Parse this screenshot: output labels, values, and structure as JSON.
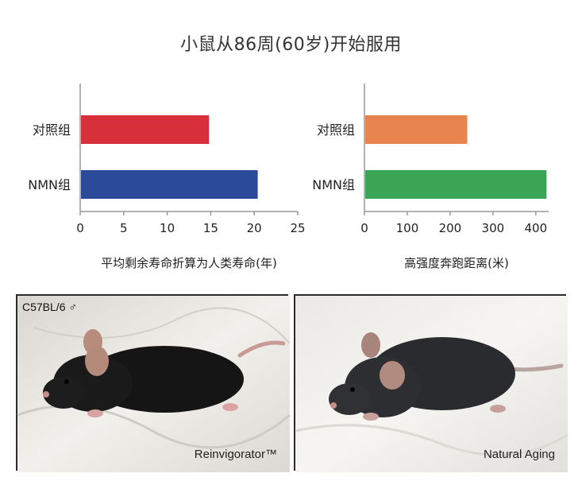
{
  "title": "小鼠从86周(60岁)开始服用",
  "chart_data": [
    {
      "type": "bar",
      "orientation": "horizontal",
      "categories": [
        "对照组",
        "NMN组"
      ],
      "values": [
        14.8,
        20.4
      ],
      "colors": [
        "#d7303b",
        "#2c4a9a"
      ],
      "xlabel": "平均剩余寿命折算为人类寿命(年)",
      "xlim": [
        0,
        25
      ],
      "xticks": [
        0,
        5,
        10,
        15,
        20,
        25
      ],
      "grid": false
    },
    {
      "type": "bar",
      "orientation": "horizontal",
      "categories": [
        "对照组",
        "NMN组"
      ],
      "values": [
        240,
        425
      ],
      "colors": [
        "#e8854f",
        "#3aa655"
      ],
      "xlabel": "高强度奔跑距离(米)",
      "xlim": [
        0,
        430
      ],
      "xticks": [
        0,
        100,
        200,
        300,
        400
      ],
      "grid": false
    }
  ],
  "photos": {
    "strain_label": "C57BL/6 ♂",
    "left_caption": "Reinvigorator™",
    "right_caption": "Natural Aging"
  }
}
